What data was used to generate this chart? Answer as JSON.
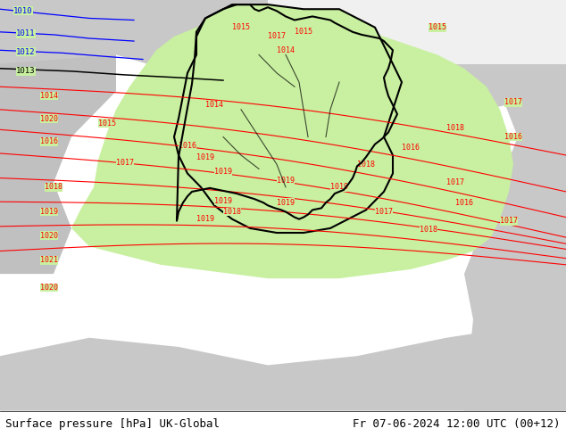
{
  "title_left": "Surface pressure [hPa] UK-Global",
  "title_right": "Fr 07-06-2024 12:00 UTC (00+12)",
  "background_land_green": "#c8f0a0",
  "background_sea_gray": "#d8d8d8",
  "background_white_region": "#e8e8e8",
  "contour_color_red": "#ff0000",
  "contour_color_blue": "#0000ff",
  "contour_color_black": "#000000",
  "border_color": "#000000",
  "fig_width": 6.34,
  "fig_height": 4.9,
  "dpi": 100,
  "bottom_bar_color": "#ffffff",
  "font_size_title": 9,
  "font_family": "monospace"
}
